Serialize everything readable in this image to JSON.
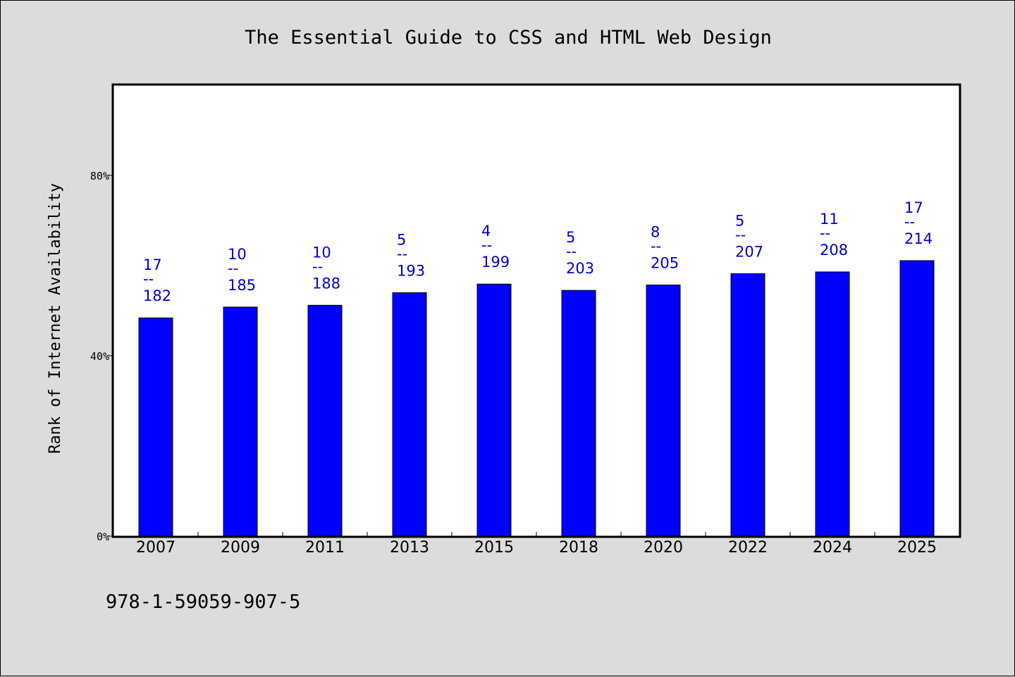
{
  "chart_data": {
    "type": "bar",
    "title": "The Essential Guide to CSS and HTML Web Design",
    "xlabel": "",
    "ylabel": "Rank of Internet Availability",
    "ylim": [
      0,
      100
    ],
    "yticks": [
      0,
      40,
      80
    ],
    "ytick_labels": [
      "0%",
      "40%",
      "80%"
    ],
    "grid": false,
    "categories": [
      "2007",
      "2009",
      "2011",
      "2013",
      "2015",
      "2018",
      "2020",
      "2022",
      "2024",
      "2025"
    ],
    "values": [
      48.4,
      50.8,
      51.2,
      54.0,
      55.9,
      54.5,
      55.7,
      58.2,
      58.6,
      61.1
    ],
    "rank_labels": [
      "17",
      "10",
      "10",
      "5",
      "4",
      "5",
      "8",
      "5",
      "11",
      "17"
    ],
    "separator_labels": [
      "--",
      "--",
      "--",
      "--",
      "--",
      "--",
      "--",
      "--",
      "--",
      "--"
    ],
    "total_labels": [
      "182",
      "185",
      "188",
      "193",
      "199",
      "203",
      "205",
      "207",
      "208",
      "214"
    ],
    "bar_color": "#0000ff",
    "label_color": "#0000cc"
  },
  "footer": {
    "isbn": "978-1-59059-907-5"
  }
}
